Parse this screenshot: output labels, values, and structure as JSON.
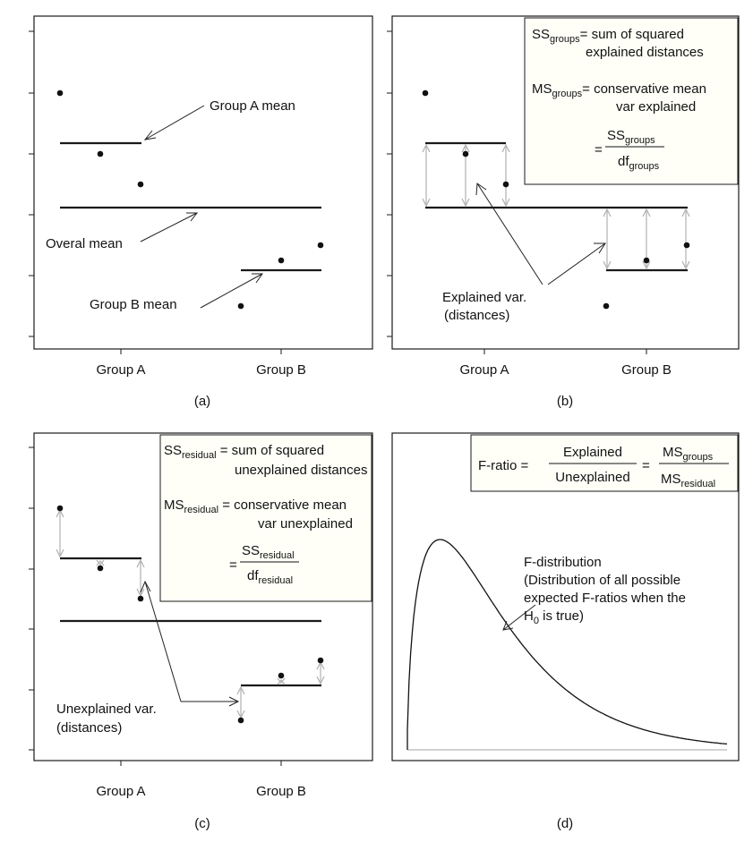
{
  "colors": {
    "ink": "#111111",
    "distance_arrows": "#b0b0b0",
    "box_fill": "#fffff8"
  },
  "panels": {
    "a": {
      "caption": "(a)",
      "x_labels": [
        "Group A",
        "Group B"
      ],
      "annotations": {
        "group_a_mean": "Group A mean",
        "overall_mean": "Overal mean",
        "group_b_mean": "Group B mean"
      }
    },
    "b": {
      "caption": "(b)",
      "x_labels": [
        "Group A",
        "Group B"
      ],
      "box": {
        "ss_sym": "SS",
        "ss_sub": "groups",
        "ss_text1": "= sum of squared",
        "ss_text2": "explained distances",
        "ms_sym": "MS",
        "ms_sub": "groups",
        "ms_text1": "= conservative mean",
        "ms_text2": "var explained",
        "eq": "=",
        "num_sym": "SS",
        "num_sub": "groups",
        "den_sym": "df",
        "den_sub": "groups"
      },
      "annotation_line1": "Explained var.",
      "annotation_line2": "(distances)"
    },
    "c": {
      "caption": "(c)",
      "x_labels": [
        "Group A",
        "Group B"
      ],
      "box": {
        "ss_sym": "SS",
        "ss_sub": "residual",
        "ss_text1": " = sum of squared",
        "ss_text2": "unexplained distances",
        "ms_sym": "MS",
        "ms_sub": "residual",
        "ms_text1": " = conservative mean",
        "ms_text2": "var unexplained",
        "eq": "=",
        "num_sym": "SS",
        "num_sub": "residual",
        "den_sym": "df",
        "den_sub": "residual"
      },
      "annotation_line1": "Unexplained var.",
      "annotation_line2": "(distances)"
    },
    "d": {
      "caption": "(d)",
      "box": {
        "lhs": "F-ratio =",
        "num1": "Explained",
        "den1": "Unexplained",
        "eq": "=",
        "num2_sym": "MS",
        "num2_sub": "groups",
        "den2_sym": "MS",
        "den2_sub": "residual"
      },
      "label_line1": "F-distribution",
      "label_line2": "(Distribution of all possible",
      "label_line3": "expected F-ratios when the",
      "label_line4_sym": "H",
      "label_line4_sub": "0",
      "label_line4_rest": " is true)"
    }
  }
}
